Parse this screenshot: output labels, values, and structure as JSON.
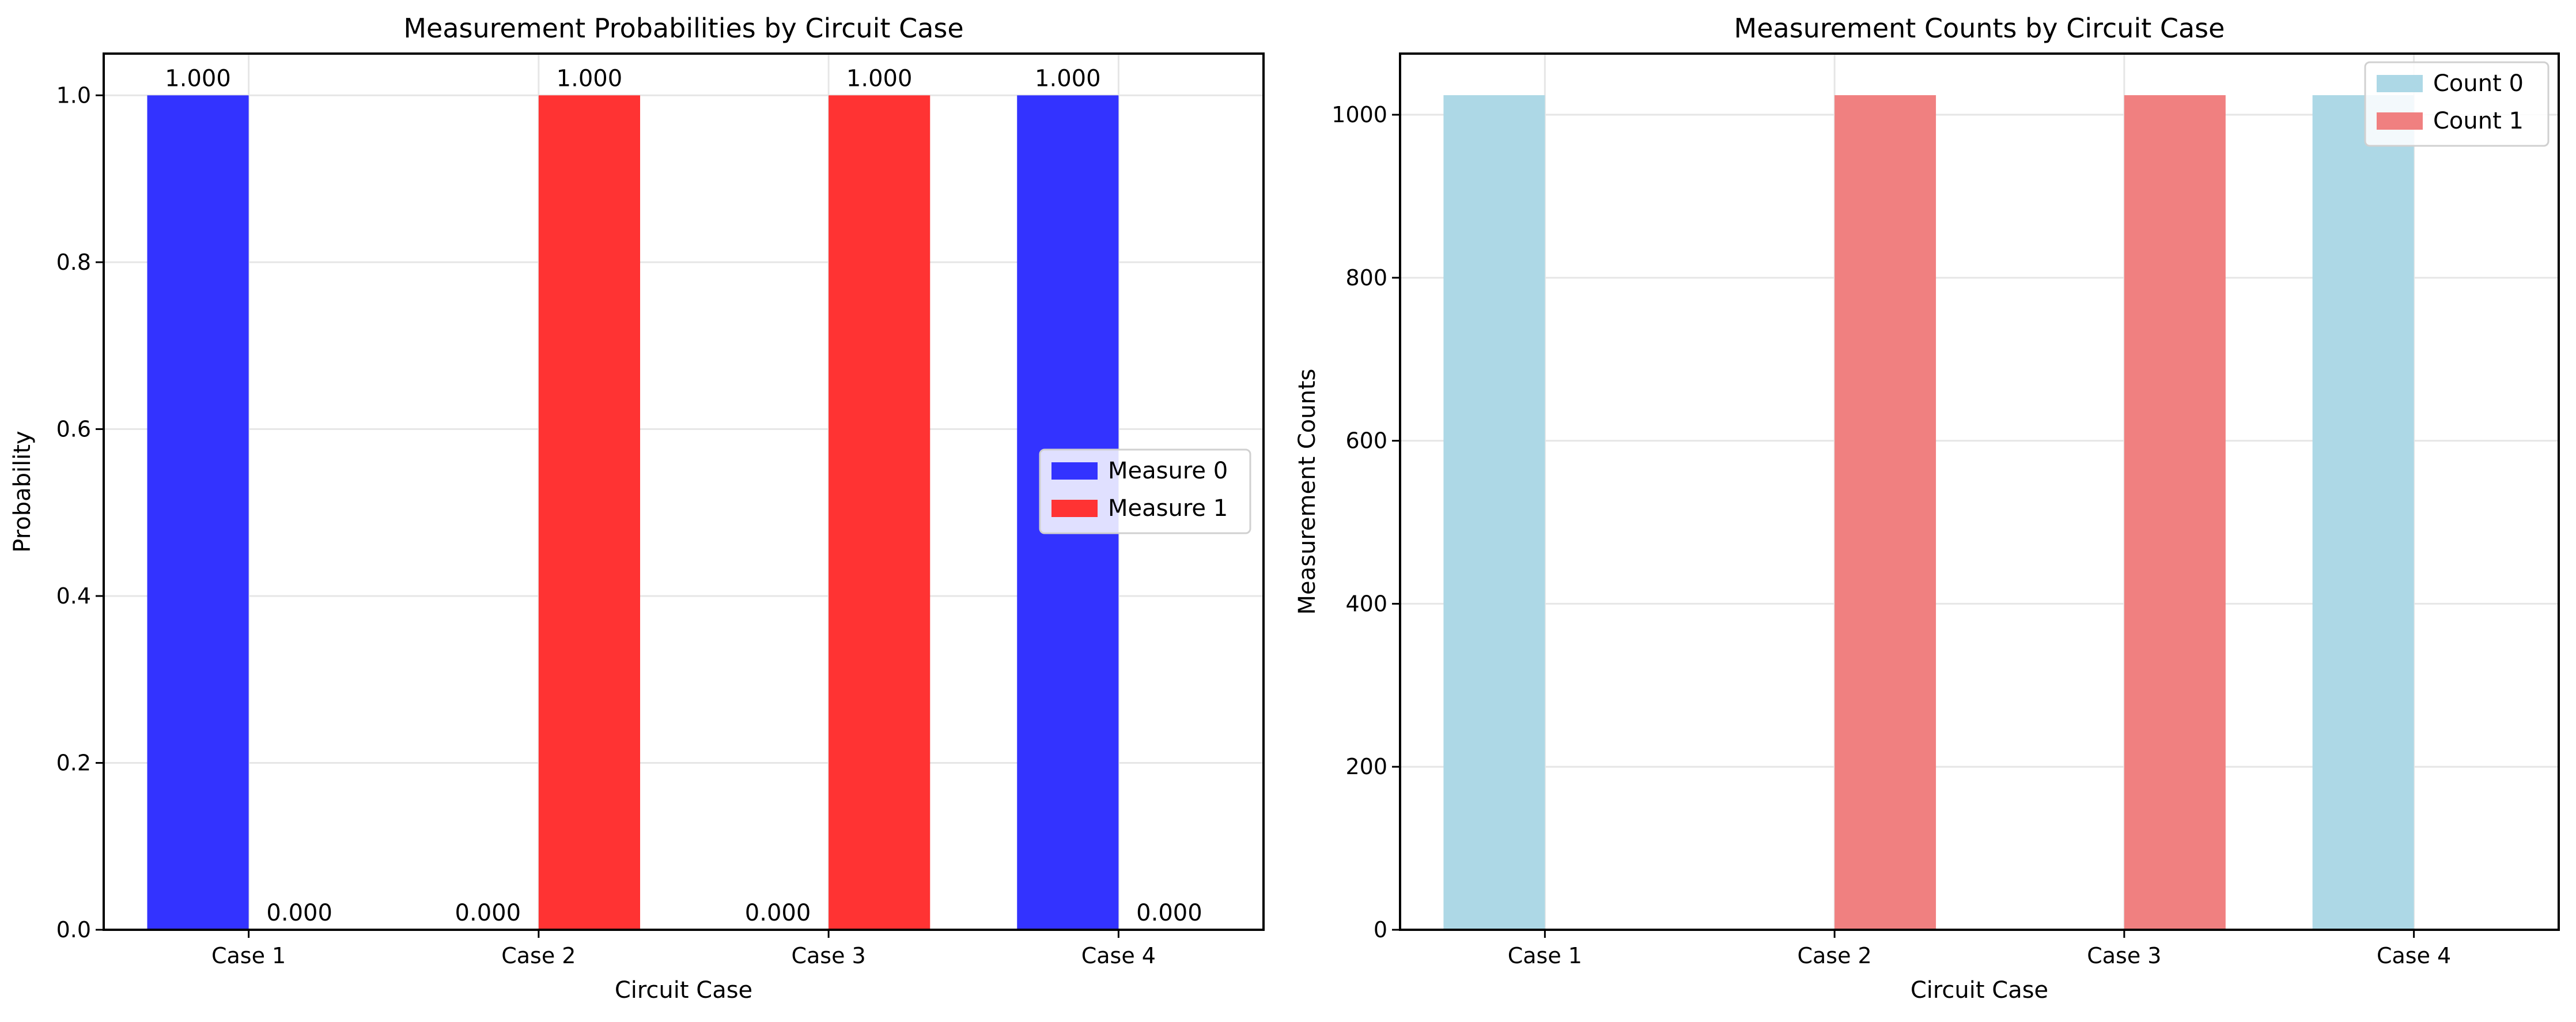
{
  "chart_data": [
    {
      "type": "bar",
      "title": "Measurement Probabilities by Circuit Case",
      "xlabel": "Circuit Case",
      "ylabel": "Probability",
      "categories": [
        "Case 1",
        "Case 2",
        "Case 3",
        "Case 4"
      ],
      "ylim": [
        0,
        1.05
      ],
      "yticks": [
        0.0,
        0.2,
        0.4,
        0.6,
        0.8,
        1.0
      ],
      "ytick_labels": [
        "0.0",
        "0.2",
        "0.4",
        "0.6",
        "0.8",
        "1.0"
      ],
      "series": [
        {
          "name": "Measure 0",
          "color": "#3333ff",
          "values": [
            1.0,
            0.0,
            0.0,
            1.0
          ],
          "labels": [
            "1.000",
            "0.000",
            "0.000",
            "1.000"
          ]
        },
        {
          "name": "Measure 1",
          "color": "#ff3333",
          "values": [
            0.0,
            1.0,
            1.0,
            0.0
          ],
          "labels": [
            "0.000",
            "1.000",
            "1.000",
            "0.000"
          ]
        }
      ],
      "grid": true,
      "legend": "center-right"
    },
    {
      "type": "bar",
      "title": "Measurement Counts by Circuit Case",
      "xlabel": "Circuit Case",
      "ylabel": "Measurement Counts",
      "categories": [
        "Case 1",
        "Case 2",
        "Case 3",
        "Case 4"
      ],
      "ylim": [
        0,
        1075
      ],
      "yticks": [
        0,
        200,
        400,
        600,
        800,
        1000
      ],
      "ytick_labels": [
        "0",
        "200",
        "400",
        "600",
        "800",
        "1000"
      ],
      "series": [
        {
          "name": "Count 0",
          "color": "#add8e6",
          "values": [
            1024,
            0,
            0,
            1024
          ]
        },
        {
          "name": "Count 1",
          "color": "#f08080",
          "values": [
            0,
            1024,
            1024,
            0
          ]
        }
      ],
      "grid": true,
      "legend": "top-right"
    }
  ]
}
